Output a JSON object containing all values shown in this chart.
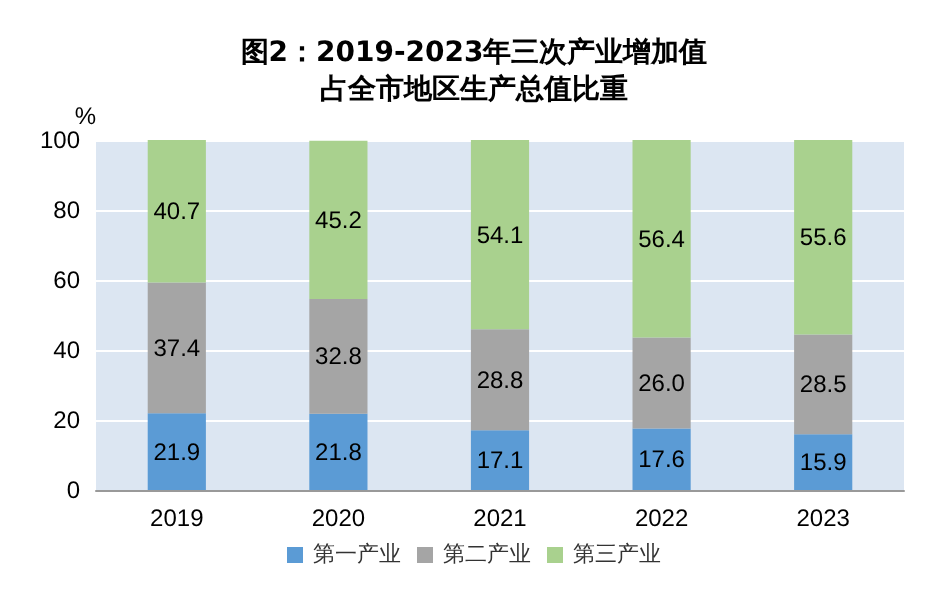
{
  "chart_data": {
    "type": "bar",
    "title": "图2：2019-2023年三次产业增加值",
    "subtitle": "占全市地区生产总值比重",
    "ylabel": "%",
    "categories": [
      "2019",
      "2020",
      "2021",
      "2022",
      "2023"
    ],
    "stacked": true,
    "series": [
      {
        "name": "第一产业",
        "color": "#5b9bd5",
        "values": [
          21.9,
          21.8,
          17.1,
          17.6,
          15.9
        ],
        "value_labels": [
          "21.9",
          "21.8",
          "17.1",
          "17.6",
          "15.9"
        ]
      },
      {
        "name": "第二产业",
        "color": "#a5a5a5",
        "values": [
          37.4,
          32.8,
          28.8,
          26.0,
          28.5
        ],
        "value_labels": [
          "37.4",
          "32.8",
          "28.8",
          "26.0",
          "28.5"
        ]
      },
      {
        "name": "第三产业",
        "color": "#a9d18e",
        "values": [
          40.7,
          45.2,
          54.1,
          56.4,
          55.6
        ],
        "value_labels": [
          "40.7",
          "45.2",
          "54.1",
          "56.4",
          "55.6"
        ]
      }
    ],
    "ylim": [
      0,
      100
    ],
    "yticks": [
      0,
      20,
      40,
      60,
      80,
      100
    ],
    "grid": "y",
    "legend": "bottom"
  }
}
